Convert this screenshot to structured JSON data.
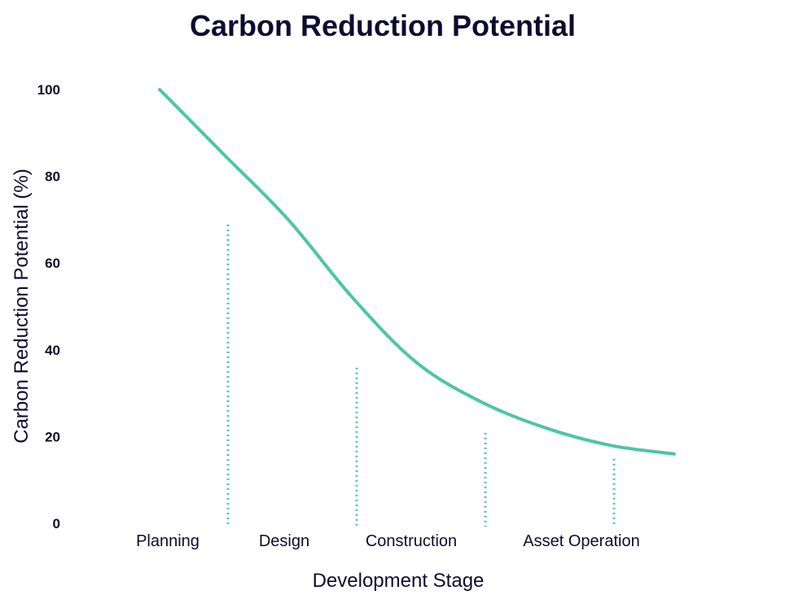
{
  "chart_data": {
    "type": "line",
    "title": "Carbon Reduction Potential",
    "xlabel": "Development Stage",
    "ylabel": "Carbon Reduction Potential (%)",
    "ylim": [
      0,
      100
    ],
    "yticks": [
      0,
      20,
      40,
      60,
      80,
      100
    ],
    "grid": false,
    "categories": [
      "Planning",
      "Design",
      "Construction",
      "Asset Operation"
    ],
    "x": [
      0,
      0.5,
      1,
      1.5,
      2,
      2.5,
      3,
      3.5,
      4
    ],
    "series": [
      {
        "values": [
          100,
          85,
          70,
          52,
          37,
          28,
          22,
          18,
          16
        ],
        "color": "#4ec4a8"
      }
    ],
    "stage_boundary_values": [
      70,
      37,
      22,
      16
    ],
    "line_color": "#4ec4a8",
    "text_color": "#0f0b30"
  }
}
